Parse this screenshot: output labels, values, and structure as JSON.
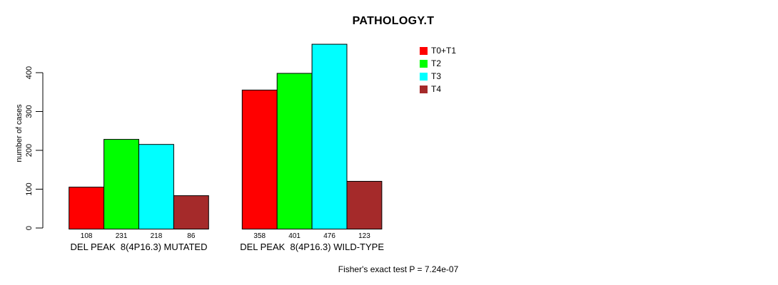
{
  "chart_data": {
    "type": "bar",
    "title": "PATHOLOGY.T",
    "ylabel": "number of cases",
    "xlabel": "",
    "ylim": [
      0,
      400
    ],
    "yticks": [
      0,
      100,
      200,
      300,
      400
    ],
    "grid": false,
    "legend_position": "top-right",
    "categories": [
      "DEL PEAK  8(4P16.3) MUTATED",
      "DEL PEAK  8(4P16.3) WILD-TYPE"
    ],
    "series": [
      {
        "name": "T0+T1",
        "color": "#FF0000",
        "values": [
          108,
          358
        ]
      },
      {
        "name": "T2",
        "color": "#00FF00",
        "values": [
          231,
          401
        ]
      },
      {
        "name": "T3",
        "color": "#00FFFF",
        "values": [
          218,
          476
        ]
      },
      {
        "name": "T4",
        "color": "#A52A2A",
        "values": [
          86,
          123
        ]
      }
    ],
    "show_value_labels": true,
    "annotation": "Fisher's exact test P = 7.24e-07"
  }
}
